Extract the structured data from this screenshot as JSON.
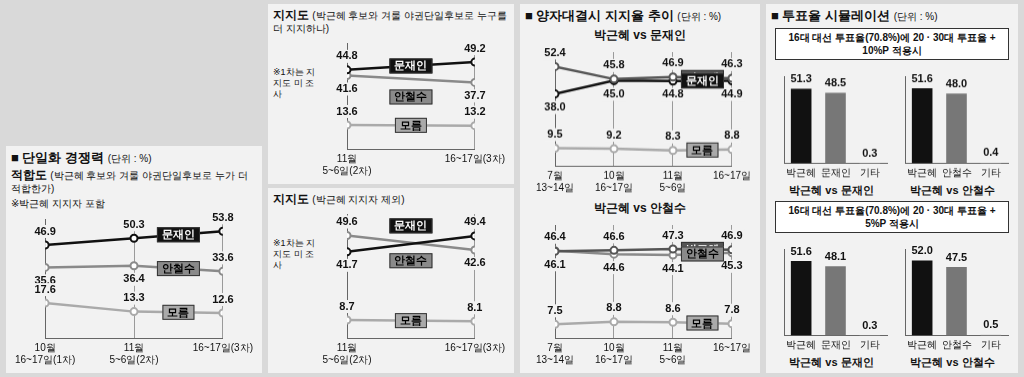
{
  "sections": [
    {
      "title": "■ 단일화 경쟁력",
      "unit": "(단위 : %)"
    },
    {
      "title": "■ 양자대결시 지지율 추이",
      "unit": "(단위 : %)"
    },
    {
      "title": "■ 투표율 시뮬레이션",
      "unit": "(단위 : %)"
    }
  ],
  "boxes": [
    "16대 대선 투표율(70.8%)에 20 · 30대 투표율 + 10%P 적용시",
    "16대 대선 투표율(70.8%)에 20 · 30대 투표율 + 5%P 적용시"
  ],
  "chart_data": [
    {
      "type": "line",
      "title": "적합도",
      "subtitle": "(박근혜 후보와 겨룰 야권단일후보로 누가 더 적합한가)",
      "note": "※박근혜 지지자 포함",
      "categories": [
        "10월 16~17일(1차)",
        "11월 5~6일(2차)",
        "16~17일(3차)"
      ],
      "series": [
        {
          "name": "문재인",
          "color": "#111111",
          "values": [
            46.9,
            50.3,
            53.8
          ]
        },
        {
          "name": "안철수",
          "color": "#8a8a8a",
          "values": [
            35.6,
            36.4,
            33.6
          ]
        },
        {
          "name": "모름",
          "color": "#aaaaaa",
          "values": [
            17.6,
            13.3,
            12.6
          ]
        }
      ],
      "ylim": [
        0,
        60
      ],
      "grid": true,
      "data_labels": true,
      "tick_labels": "x",
      "marker": "circle"
    },
    {
      "type": "line",
      "title": "지지도",
      "subtitle": "(박근혜 후보와 겨룰 야권단일후보로 누구를 더 지지하나)",
      "note": "※1차는 지지도 미 조사",
      "categories": [
        "11월 5~6일(2차)",
        "16~17일(3차)"
      ],
      "series": [
        {
          "name": "문재인",
          "color": "#111111",
          "values": [
            44.8,
            49.2
          ]
        },
        {
          "name": "안철수",
          "color": "#8a8a8a",
          "values": [
            41.6,
            37.7
          ]
        },
        {
          "name": "모름",
          "color": "#aaaaaa",
          "values": [
            13.6,
            13.2
          ]
        }
      ],
      "ylim": [
        0,
        60
      ],
      "grid": true,
      "data_labels": true,
      "tick_labels": "x",
      "marker": "circle"
    },
    {
      "type": "line",
      "title": "지지도",
      "subtitle": "(박근혜 지지자 제외)",
      "note": "※1차는 지지도 미 조사",
      "categories": [
        "11월 5~6일(2차)",
        "16~17일(3차)"
      ],
      "series": [
        {
          "name": "문재인",
          "color": "#111111",
          "values": [
            41.7,
            49.4
          ]
        },
        {
          "name": "안철수",
          "color": "#8a8a8a",
          "values": [
            49.6,
            42.6
          ]
        },
        {
          "name": "모름",
          "color": "#aaaaaa",
          "values": [
            8.7,
            8.1
          ]
        }
      ],
      "ylim": [
        0,
        60
      ],
      "grid": true,
      "data_labels": true,
      "tick_labels": "x",
      "marker": "circle"
    },
    {
      "type": "line",
      "title": "박근혜 vs 문재인",
      "categories": [
        "7월 13~14일",
        "10월 16~17일",
        "11월 5~6일",
        "16~17일"
      ],
      "series": [
        {
          "name": "박근혜",
          "color": "#555555",
          "values": [
            52.4,
            45.8,
            46.9,
            46.3
          ]
        },
        {
          "name": "문재인",
          "color": "#111111",
          "values": [
            38.0,
            45.0,
            44.8,
            44.9
          ],
          "value_labels": [
            "38.0",
            "45.0",
            "44.8",
            "44.9"
          ]
        },
        {
          "name": "모름",
          "color": "#aaaaaa",
          "values": [
            9.5,
            9.2,
            8.3,
            8.8
          ]
        }
      ],
      "ylim": [
        0,
        60
      ],
      "grid": true,
      "data_labels": true,
      "tick_labels": "x",
      "marker": "circle"
    },
    {
      "type": "line",
      "title": "박근혜 vs 안철수",
      "categories": [
        "7월 13~14일",
        "10월 16~17일",
        "11월 5~6일",
        "16~17일"
      ],
      "series": [
        {
          "name": "박근혜",
          "color": "#555555",
          "values": [
            46.1,
            46.6,
            47.3,
            46.9
          ]
        },
        {
          "name": "안철수",
          "color": "#8a8a8a",
          "values": [
            46.4,
            44.6,
            44.1,
            45.3
          ]
        },
        {
          "name": "모름",
          "color": "#aaaaaa",
          "values": [
            7.5,
            8.8,
            8.6,
            7.8
          ]
        }
      ],
      "ylim": [
        0,
        60
      ],
      "grid": true,
      "data_labels": true,
      "tick_labels": "x",
      "marker": "circle"
    },
    {
      "type": "bar",
      "title": "박근혜 vs 문재인",
      "categories": [
        "박근혜",
        "문재인",
        "기타"
      ],
      "values": [
        51.3,
        48.5,
        0.3
      ],
      "colors": [
        "#111111",
        "#777777",
        "#bbbbbb"
      ],
      "ylim": [
        0,
        60
      ],
      "grid": false,
      "data_labels": true,
      "tick_labels": "x"
    },
    {
      "type": "bar",
      "title": "박근혜 vs 안철수",
      "categories": [
        "박근혜",
        "안철수",
        "기타"
      ],
      "values": [
        51.6,
        48.0,
        0.4
      ],
      "value_labels": [
        "51.6",
        "48.0",
        "0.4"
      ],
      "colors": [
        "#111111",
        "#777777",
        "#bbbbbb"
      ],
      "ylim": [
        0,
        60
      ],
      "grid": false,
      "data_labels": true,
      "tick_labels": "x"
    },
    {
      "type": "bar",
      "title": "박근혜 vs 문재인",
      "categories": [
        "박근혜",
        "문재인",
        "기타"
      ],
      "values": [
        51.6,
        48.1,
        0.3
      ],
      "colors": [
        "#111111",
        "#777777",
        "#bbbbbb"
      ],
      "ylim": [
        0,
        60
      ],
      "grid": false,
      "data_labels": true,
      "tick_labels": "x"
    },
    {
      "type": "bar",
      "title": "박근혜 vs 안철수",
      "categories": [
        "박근혜",
        "안철수",
        "기타"
      ],
      "values": [
        52.0,
        47.5,
        0.5
      ],
      "value_labels": [
        "52.0",
        "47.5",
        "0.5"
      ],
      "colors": [
        "#111111",
        "#777777",
        "#bbbbbb"
      ],
      "ylim": [
        0,
        60
      ],
      "grid": false,
      "data_labels": true,
      "tick_labels": "x"
    }
  ]
}
